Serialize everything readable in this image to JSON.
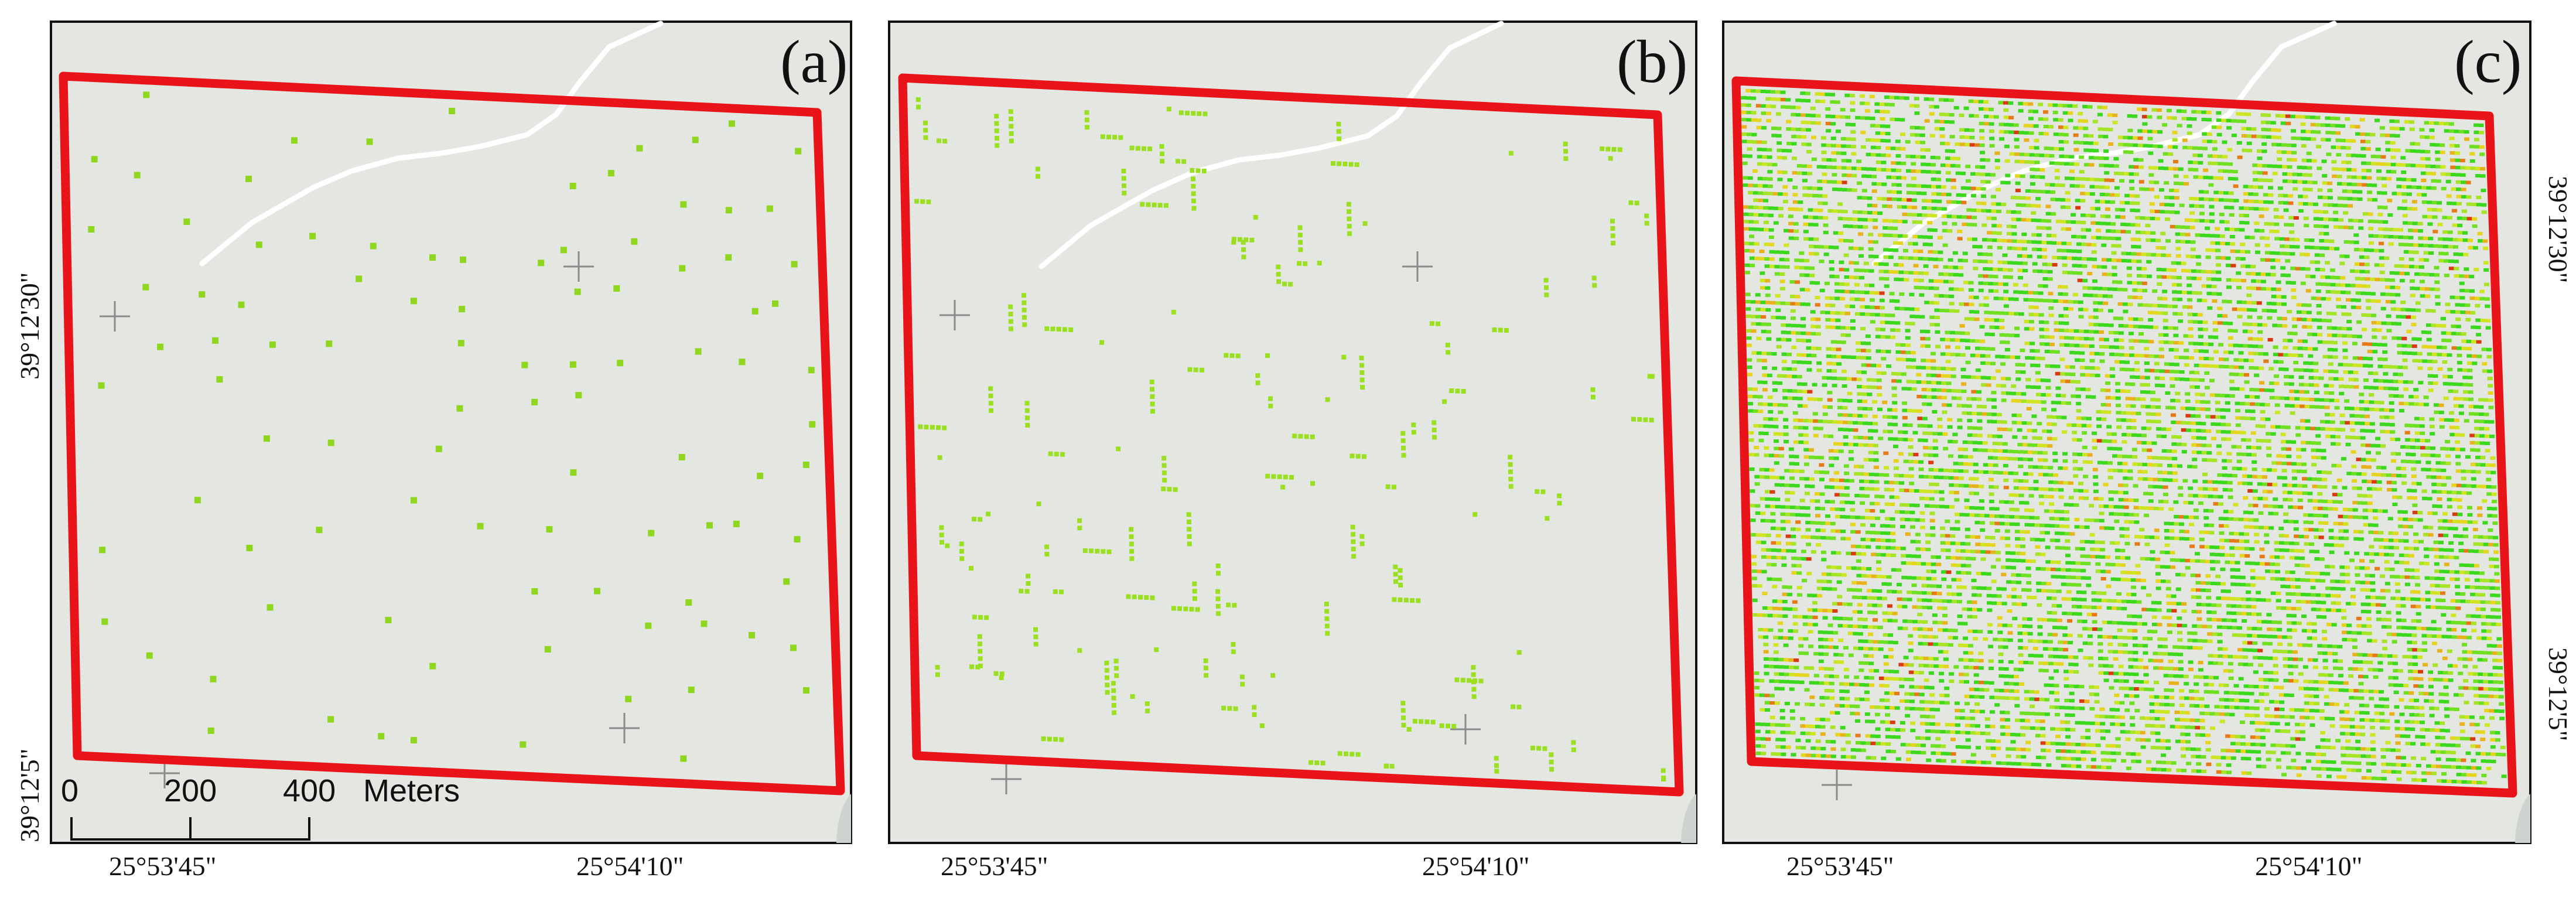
{
  "panels": [
    {
      "label": "(a)",
      "x_coord_labels": [
        "25°53'45\"",
        "25°54'10\""
      ],
      "y_coord_labels": [
        "39°12'30\"",
        "39°12'5\""
      ],
      "y_labels_side": "left",
      "scale_bar": {
        "ticks": [
          "0",
          "200",
          "400"
        ],
        "unit": "Meters"
      },
      "point_style": "sparse",
      "point_color": "#8fd61e"
    },
    {
      "label": "(b)",
      "x_coord_labels": [
        "25°53'45\"",
        "25°54'10\""
      ],
      "y_coord_labels": [],
      "y_labels_side": "none",
      "point_style": "medium",
      "point_color": "#9be020"
    },
    {
      "label": "(c)",
      "x_coord_labels": [
        "25°53'45\"",
        "25°54'10\""
      ],
      "y_coord_labels": [
        "39°12'30\"",
        "39°12'5\""
      ],
      "y_labels_side": "right",
      "point_style": "dense",
      "point_colors": [
        "#3bd81e",
        "#6fe021",
        "#a6e425",
        "#cfe524",
        "#e5d51f",
        "#e8b21c",
        "#e57a17",
        "#d93a12"
      ]
    }
  ],
  "colors": {
    "background": "#e3e6e1",
    "frame": "#111111",
    "boundary": "#e8141a",
    "road": "#ffffff",
    "crosshair": "#8a8a8a"
  }
}
